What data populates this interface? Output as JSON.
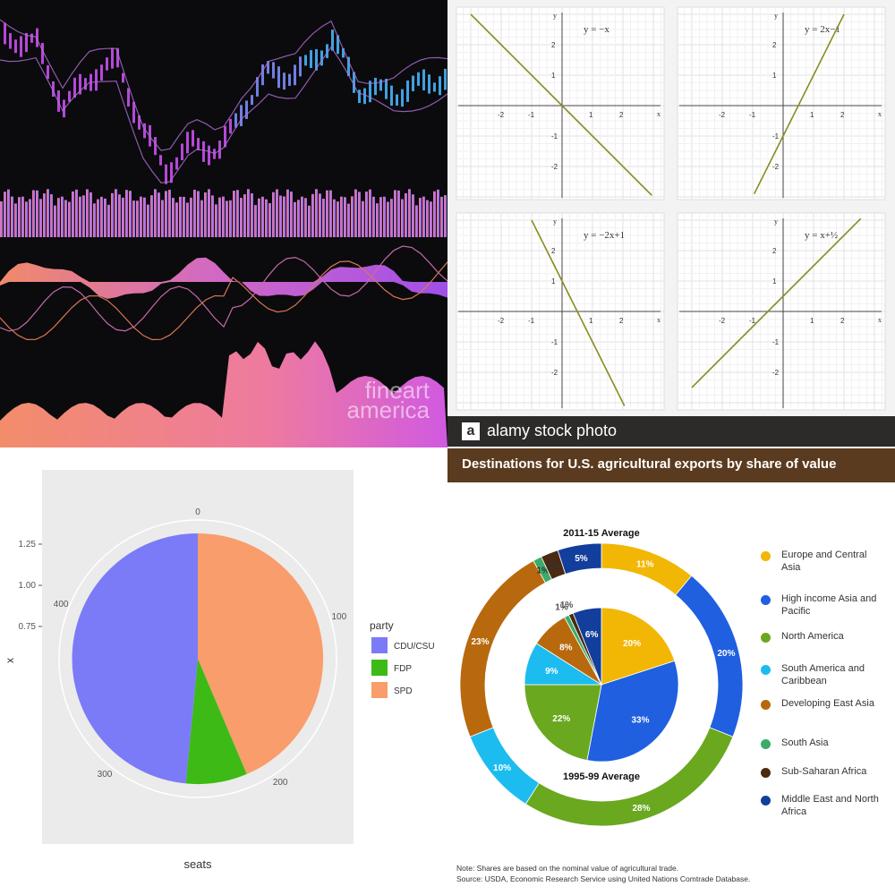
{
  "stock_panel": {
    "watermark_line1": "fineart",
    "watermark_line2": "america"
  },
  "linear_graphs": {
    "chart_data": [
      {
        "type": "line",
        "title": "y = −x",
        "slope": -1,
        "intercept": 0,
        "xlim": [
          -3,
          3
        ],
        "ylim": [
          -3,
          3
        ],
        "x_ticks": [
          "-2",
          "-1",
          "1",
          "2"
        ],
        "y_ticks": [
          "2",
          "1",
          "-1",
          "-2"
        ],
        "xlabel": "x",
        "ylabel": "y"
      },
      {
        "type": "line",
        "title": "y = 2x−1",
        "slope": 2,
        "intercept": -1,
        "xlim": [
          -3,
          3
        ],
        "ylim": [
          -3,
          3
        ],
        "x_ticks": [
          "-2",
          "-1",
          "1",
          "2"
        ],
        "y_ticks": [
          "2",
          "1",
          "-1",
          "-2"
        ],
        "xlabel": "x",
        "ylabel": "y"
      },
      {
        "type": "line",
        "title": "y = −2x+1",
        "slope": -2,
        "intercept": 1,
        "xlim": [
          -3,
          3
        ],
        "ylim": [
          -3,
          3
        ],
        "x_ticks": [
          "-2",
          "-1",
          "1",
          "2"
        ],
        "y_ticks": [
          "2",
          "1",
          "-1",
          "-2"
        ],
        "xlabel": "x",
        "ylabel": "y"
      },
      {
        "type": "line",
        "title": "y = x+½",
        "slope": 1,
        "intercept": 0.5,
        "xlim": [
          -3,
          3
        ],
        "ylim": [
          -3,
          3
        ],
        "x_ticks": [
          "-2",
          "-1",
          "1",
          "2"
        ],
        "y_ticks": [
          "2",
          "1",
          "-1",
          "-2"
        ],
        "xlabel": "x",
        "ylabel": "y"
      }
    ]
  },
  "seats_pie": {
    "chart_data": {
      "type": "pie",
      "xlabel": "seats",
      "ylabel": "x",
      "y_ticks": [
        "1.25",
        "1.00",
        "0.75"
      ],
      "angle_ticks": [
        "0",
        "100",
        "200",
        "300",
        "400"
      ],
      "legend_title": "party",
      "legend_position": "right",
      "slices": [
        {
          "label": "CDU/CSU",
          "value": 239,
          "color": "#7b7bf7"
        },
        {
          "label": "FDP",
          "value": 39,
          "color": "#3dba16"
        },
        {
          "label": "SPD",
          "value": 215,
          "color": "#f99d6c"
        }
      ]
    }
  },
  "ag_exports": {
    "brand": "alamy stock photo",
    "title": "Destinations for U.S. agricultural exports by share of value",
    "outer_label": "2011-15 Average",
    "inner_label": "1995-99 Average",
    "note_line1": "Note: Shares are based on the nominal value of agricultural trade.",
    "note_line2": "Source: USDA, Economic Research Service using United Nations Comtrade Database.",
    "chart_data": {
      "type": "pie",
      "categories": [
        "Europe and Central Asia",
        "High income Asia and Pacific",
        "North America",
        "South America and Caribbean",
        "Developing East Asia",
        "South Asia",
        "Sub-Saharan Africa",
        "Middle East and North Africa"
      ],
      "colors": [
        "#f2b705",
        "#1f5fe0",
        "#6aa81f",
        "#1cbcf0",
        "#b8690d",
        "#3cab6a",
        "#4a2a12",
        "#123e9c"
      ],
      "series": [
        {
          "name": "2011-15 Average",
          "values": [
            11,
            20,
            28,
            10,
            23,
            1,
            2,
            5
          ],
          "labels": [
            "11%",
            "20%",
            "28%",
            "10%",
            "23%",
            "1%",
            "2%",
            "5%"
          ]
        },
        {
          "name": "1995-99 Average",
          "values": [
            20,
            33,
            22,
            9,
            8,
            1,
            1,
            6
          ],
          "labels": [
            "20%",
            "33%",
            "22%",
            "9%",
            "8%",
            "1%",
            "1%",
            "6%"
          ]
        }
      ]
    }
  }
}
